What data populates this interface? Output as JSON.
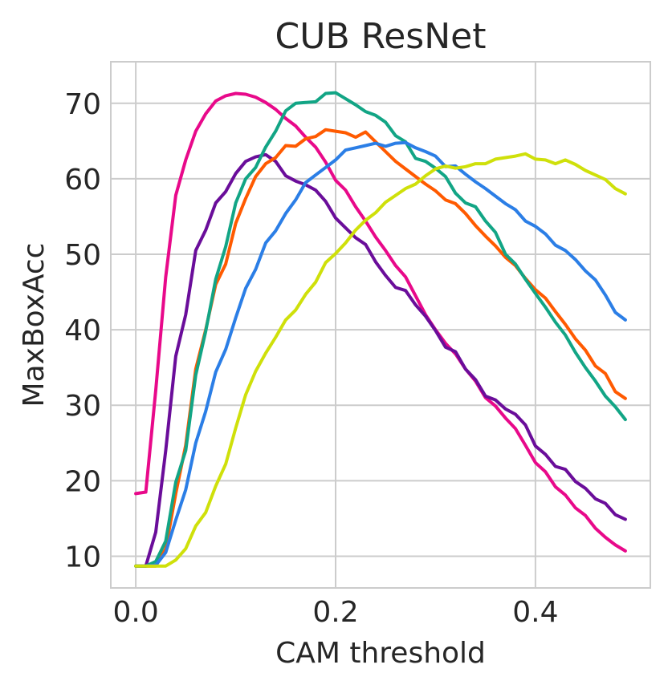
{
  "chart_data": {
    "type": "line",
    "title": "CUB ResNet",
    "xlabel": "CAM threshold",
    "ylabel": "MaxBoxAcc",
    "xlim": [
      -0.025,
      0.515
    ],
    "ylim": [
      5.8,
      75.5
    ],
    "xticks": [
      0.0,
      0.2,
      0.4
    ],
    "xtick_labels": [
      "0.0",
      "0.2",
      "0.4"
    ],
    "yticks": [
      10,
      20,
      30,
      40,
      50,
      60,
      70
    ],
    "ytick_labels": [
      "10",
      "20",
      "30",
      "40",
      "50",
      "60",
      "70"
    ],
    "grid": true,
    "legend": "none",
    "x": [
      0.0,
      0.01,
      0.02,
      0.03,
      0.04,
      0.05,
      0.06,
      0.07,
      0.08,
      0.09,
      0.1,
      0.11,
      0.12,
      0.13,
      0.14,
      0.15,
      0.16,
      0.17,
      0.18,
      0.19,
      0.2,
      0.21,
      0.22,
      0.23,
      0.24,
      0.25,
      0.26,
      0.27,
      0.28,
      0.29,
      0.3,
      0.31,
      0.32,
      0.33,
      0.34,
      0.35,
      0.36,
      0.37,
      0.38,
      0.39,
      0.4,
      0.41,
      0.42,
      0.43,
      0.44,
      0.45,
      0.46,
      0.47,
      0.48,
      0.49
    ],
    "series": [
      {
        "color": "#e8098a",
        "values": [
          18.3,
          18.5,
          32.0,
          47.0,
          57.8,
          62.5,
          66.3,
          68.6,
          70.3,
          71.0,
          71.3,
          71.2,
          70.8,
          70.1,
          69.2,
          68.0,
          67.0,
          65.5,
          64.2,
          62.2,
          59.8,
          58.5,
          56.3,
          54.4,
          52.3,
          50.5,
          48.5,
          47.0,
          44.5,
          42.0,
          40.0,
          38.2,
          36.8,
          34.8,
          33.2,
          31.0,
          29.9,
          28.3,
          26.9,
          24.7,
          22.4,
          21.2,
          19.2,
          18.1,
          16.4,
          15.4,
          13.7,
          12.5,
          11.5,
          10.7
        ]
      },
      {
        "color": "#6a0d9a",
        "values": [
          8.7,
          8.7,
          13.2,
          24.0,
          36.5,
          42.0,
          50.5,
          53.2,
          56.8,
          58.3,
          60.7,
          62.3,
          62.9,
          63.2,
          62.3,
          60.4,
          59.7,
          59.2,
          58.5,
          57.0,
          54.8,
          53.5,
          52.2,
          51.3,
          49.0,
          47.2,
          45.6,
          45.2,
          43.3,
          41.8,
          39.9,
          37.7,
          37.1,
          34.8,
          33.4,
          31.2,
          30.7,
          29.5,
          28.8,
          27.4,
          24.6,
          23.5,
          21.9,
          21.5,
          19.9,
          19.0,
          17.6,
          17.0,
          15.5,
          14.9
        ]
      },
      {
        "color": "#ff5a00",
        "values": [
          8.7,
          8.7,
          8.7,
          11.0,
          18.3,
          24.7,
          34.8,
          40.0,
          46.0,
          48.7,
          54.1,
          57.4,
          60.3,
          62.0,
          62.8,
          64.4,
          64.3,
          65.3,
          65.6,
          66.5,
          66.3,
          66.1,
          65.5,
          66.2,
          64.9,
          63.6,
          62.3,
          61.3,
          60.3,
          59.3,
          58.4,
          57.2,
          56.7,
          55.4,
          53.8,
          52.4,
          51.1,
          49.6,
          48.5,
          46.8,
          45.3,
          44.2,
          42.4,
          40.7,
          38.8,
          37.3,
          35.2,
          34.2,
          31.8,
          30.9
        ]
      },
      {
        "color": "#12a585",
        "values": [
          8.7,
          8.7,
          9.3,
          12.0,
          19.8,
          24.0,
          34.0,
          39.8,
          46.7,
          51.0,
          56.8,
          60.0,
          61.5,
          64.2,
          66.3,
          69.0,
          70.0,
          70.1,
          70.2,
          71.3,
          71.4,
          70.6,
          69.8,
          68.9,
          68.4,
          67.5,
          65.7,
          64.9,
          62.7,
          62.3,
          61.4,
          60.3,
          58.1,
          56.8,
          56.3,
          54.4,
          52.9,
          50.0,
          48.7,
          46.7,
          44.8,
          43.0,
          41.0,
          39.3,
          37.0,
          35.0,
          33.2,
          31.2,
          29.8,
          28.1
        ]
      },
      {
        "color": "#2b7ee6",
        "values": [
          8.7,
          8.7,
          8.8,
          10.5,
          14.8,
          18.8,
          25.0,
          29.2,
          34.4,
          37.4,
          41.6,
          45.5,
          48.0,
          51.5,
          53.1,
          55.4,
          57.2,
          59.5,
          60.5,
          61.5,
          62.5,
          63.8,
          64.1,
          64.4,
          64.7,
          64.3,
          64.7,
          64.8,
          64.1,
          63.6,
          63.0,
          61.6,
          61.7,
          60.6,
          59.6,
          58.7,
          57.7,
          56.7,
          55.9,
          54.4,
          53.7,
          52.7,
          51.2,
          50.5,
          49.3,
          47.8,
          46.6,
          44.6,
          42.3,
          41.3
        ]
      },
      {
        "color": "#cfe00a",
        "values": [
          8.7,
          8.7,
          8.7,
          8.7,
          9.5,
          11.0,
          14.0,
          15.8,
          19.3,
          22.2,
          27.0,
          31.4,
          34.5,
          36.9,
          39.0,
          41.3,
          42.6,
          44.7,
          46.3,
          48.9,
          50.1,
          51.5,
          53.2,
          54.5,
          55.5,
          56.9,
          57.8,
          58.7,
          59.3,
          60.4,
          61.3,
          61.7,
          61.4,
          61.6,
          62.0,
          62.0,
          62.6,
          62.8,
          63.0,
          63.3,
          62.6,
          62.5,
          62.0,
          62.5,
          61.9,
          61.1,
          60.5,
          59.9,
          58.7,
          58.0
        ]
      }
    ]
  }
}
